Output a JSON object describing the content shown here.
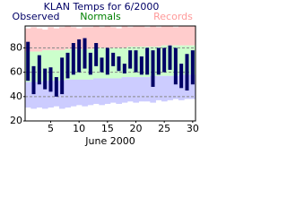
{
  "chart_data": {
    "type": "range-bar",
    "title": "KLAN Temps for 6/2000",
    "x_label": "June 2000",
    "x": [
      1,
      2,
      3,
      4,
      5,
      6,
      7,
      8,
      9,
      10,
      11,
      12,
      13,
      14,
      15,
      16,
      17,
      18,
      19,
      20,
      21,
      22,
      23,
      24,
      25,
      26,
      27,
      28,
      29,
      30
    ],
    "xlim": [
      0.5,
      30.5
    ],
    "xticks": [
      5,
      10,
      15,
      20,
      25,
      30
    ],
    "ylim": [
      20,
      98
    ],
    "yticks": [
      20,
      40,
      60,
      80
    ],
    "grid": true,
    "series": [
      {
        "name": "Observed",
        "color": "#000066",
        "high": [
          85,
          65,
          74,
          63,
          64,
          56,
          72,
          76,
          84,
          87,
          88,
          76,
          84,
          72,
          80,
          76,
          73,
          67,
          78,
          78,
          73,
          80,
          78,
          80,
          80,
          82,
          80,
          67,
          75,
          78
        ],
        "low": [
          53,
          42,
          50,
          46,
          44,
          40,
          42,
          55,
          58,
          60,
          63,
          58,
          65,
          60,
          58,
          65,
          61,
          59,
          63,
          60,
          58,
          58,
          48,
          58,
          60,
          62,
          50,
          47,
          45,
          50
        ]
      },
      {
        "name": "Normals",
        "color": "#ccffcc",
        "text_color": "#008000",
        "high": [
          77,
          77,
          77,
          78,
          78,
          78,
          78,
          79,
          79,
          79,
          79,
          79,
          80,
          80,
          80,
          80,
          80,
          80,
          81,
          81,
          81,
          81,
          81,
          81,
          82,
          82,
          82,
          82,
          82,
          82
        ],
        "low": [
          52,
          52,
          52,
          53,
          53,
          53,
          53,
          54,
          54,
          54,
          54,
          54,
          55,
          55,
          55,
          55,
          55,
          56,
          56,
          56,
          56,
          56,
          57,
          57,
          57,
          57,
          57,
          58,
          58,
          58
        ]
      },
      {
        "name": "Records",
        "color": "#ffcccc",
        "low_color": "#ccccff",
        "text_color": "#ff9999",
        "high": [
          96,
          97,
          96,
          95,
          97,
          96,
          97,
          98,
          97,
          96,
          97,
          97,
          98,
          97,
          98,
          97,
          96,
          98,
          97,
          98,
          98,
          97,
          98,
          97,
          98,
          98,
          97,
          98,
          98,
          98
        ],
        "low": [
          31,
          30,
          31,
          30,
          31,
          32,
          30,
          31,
          32,
          33,
          32,
          33,
          34,
          33,
          34,
          35,
          34,
          35,
          36,
          35,
          36,
          36,
          35,
          37,
          36,
          37,
          38,
          37,
          38,
          38
        ]
      }
    ]
  }
}
